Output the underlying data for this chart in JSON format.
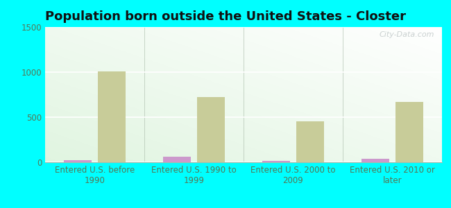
{
  "title": "Population born outside the United States - Closter",
  "categories": [
    "Entered U.S. before\n1990",
    "Entered U.S. 1990 to\n1999",
    "Entered U.S. 2000 to\n2009",
    "Entered U.S. 2010 or\nlater"
  ],
  "native_values": [
    20,
    65,
    18,
    35
  ],
  "foreign_values": [
    1005,
    720,
    455,
    670
  ],
  "native_color": "#cc99cc",
  "foreign_color": "#c8cc99",
  "ylim": [
    0,
    1500
  ],
  "yticks": [
    0,
    500,
    1000,
    1500
  ],
  "background_outer": "#00ffff",
  "watermark": "City-Data.com",
  "bar_width": 0.28,
  "title_fontsize": 13,
  "tick_fontsize": 8.5,
  "legend_fontsize": 9.5,
  "tick_color": "#557755",
  "label_color": "#557755"
}
